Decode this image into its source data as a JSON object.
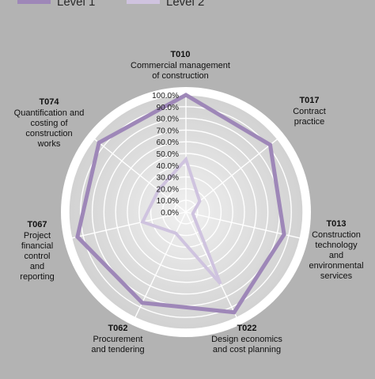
{
  "chart_data": {
    "type": "radar",
    "title": "",
    "rlim": [
      0,
      100
    ],
    "grid": true,
    "legend_position": "top",
    "tick_labels": [
      "0.0%",
      "10.0%",
      "20.0%",
      "30.0%",
      "40.0%",
      "50.0%",
      "60.0%",
      "70.0%",
      "80.0%",
      "90.0%",
      "100.0%"
    ],
    "axes": [
      {
        "code": "T010",
        "lines": [
          "Commercial management",
          "of construction"
        ]
      },
      {
        "code": "T017",
        "lines": [
          "Contract",
          "practice"
        ]
      },
      {
        "code": "T013",
        "lines": [
          "Construction",
          "technology",
          "and",
          "environmental",
          "services"
        ]
      },
      {
        "code": "T022",
        "lines": [
          "Design economics",
          "and cost planning"
        ]
      },
      {
        "code": "T062",
        "lines": [
          "Procurement",
          "and tendering"
        ]
      },
      {
        "code": "T067",
        "lines": [
          "Project",
          "financial",
          "control",
          "and",
          "reporting"
        ]
      },
      {
        "code": "T074",
        "lines": [
          "Quantification and",
          "costing of",
          "construction",
          "works"
        ]
      }
    ],
    "series": [
      {
        "name": "Level 1",
        "color": "#9e87b8",
        "values": [
          100,
          92,
          86,
          95,
          86,
          95,
          95
        ]
      },
      {
        "name": "Level 2",
        "color": "#cfc3df",
        "values": [
          45,
          15,
          6,
          68,
          20,
          38,
          30
        ]
      }
    ]
  }
}
